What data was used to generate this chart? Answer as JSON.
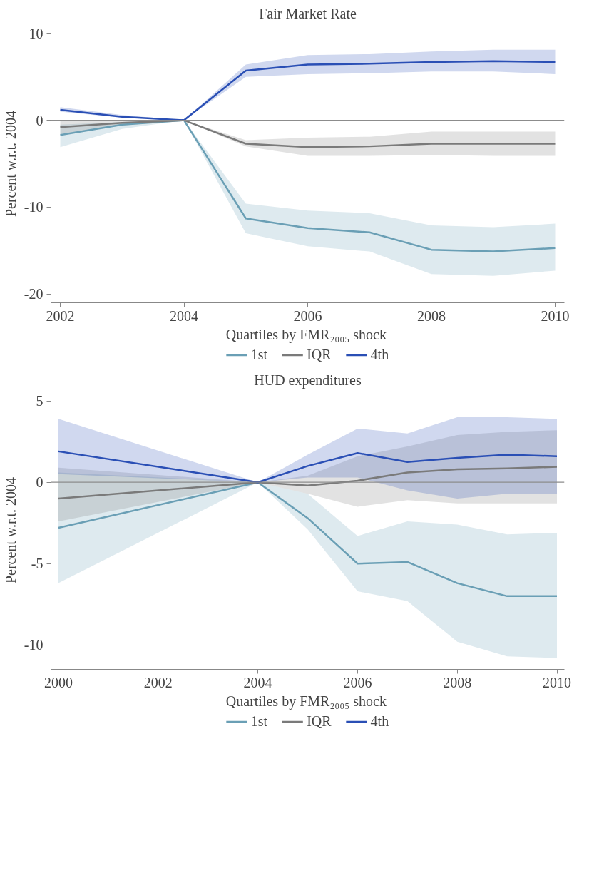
{
  "chart_data": [
    {
      "type": "line",
      "title": "Fair Market Rate",
      "ylabel": "Percent w.r.t. 2004",
      "legend_title": "Quartiles by FMR₂₀₀₅ shock",
      "x": [
        2002,
        2003,
        2004,
        2005,
        2006,
        2007,
        2008,
        2009,
        2010
      ],
      "series": [
        {
          "name": "1st",
          "color": "#6a9fb5",
          "values": [
            -1.7,
            -0.5,
            0,
            -11.3,
            -12.4,
            -12.9,
            -14.9,
            -15.1,
            -14.7
          ],
          "lower": [
            -3.1,
            -1.0,
            0,
            -13.0,
            -14.5,
            -15.1,
            -17.7,
            -17.9,
            -17.3
          ],
          "upper": [
            -0.5,
            -0.2,
            0,
            -9.6,
            -10.4,
            -10.7,
            -12.1,
            -12.3,
            -11.9
          ]
        },
        {
          "name": "IQR",
          "color": "#7a7a7a",
          "values": [
            -0.8,
            -0.3,
            0,
            -2.7,
            -3.1,
            -3.0,
            -2.7,
            -2.7,
            -2.7
          ],
          "lower": [
            -1.6,
            -0.6,
            0,
            -3.0,
            -4.1,
            -4.1,
            -4.0,
            -4.1,
            -4.1
          ],
          "upper": [
            0,
            0,
            0,
            -2.3,
            -2.0,
            -1.9,
            -1.3,
            -1.3,
            -1.3
          ]
        },
        {
          "name": "4th",
          "color": "#2a4fb5",
          "values": [
            1.2,
            0.4,
            0,
            5.7,
            6.4,
            6.5,
            6.7,
            6.8,
            6.7
          ],
          "lower": [
            1.0,
            0.3,
            0,
            5.0,
            5.3,
            5.4,
            5.6,
            5.6,
            5.3
          ],
          "upper": [
            1.5,
            0.6,
            0,
            6.4,
            7.5,
            7.6,
            7.9,
            8.1,
            8.1
          ]
        }
      ],
      "xlim": [
        2001.85,
        2010.15
      ],
      "xticks": [
        2002,
        2004,
        2006,
        2008,
        2010
      ],
      "ylim": [
        -21,
        11
      ],
      "yticks": [
        -20,
        -10,
        0,
        10
      ],
      "ref_lines": [
        {
          "axis": "y",
          "value": 0,
          "color": "#8c8c8c"
        }
      ],
      "grid": false,
      "legend": "bottom",
      "marker": "none",
      "line_style": "solid"
    },
    {
      "type": "line",
      "title": "HUD expenditures",
      "ylabel": "Percent w.r.t. 2004",
      "legend_title": "Quartiles by FMR₂₀₀₅ shock",
      "x": [
        2000,
        2004,
        2005,
        2006,
        2007,
        2008,
        2009,
        2010
      ],
      "series": [
        {
          "name": "1st",
          "color": "#6a9fb5",
          "values": [
            -2.8,
            0,
            -2.2,
            -5.0,
            -4.9,
            -6.2,
            -7.0,
            -7.0
          ],
          "lower": [
            -6.2,
            0,
            -2.9,
            -6.7,
            -7.3,
            -9.8,
            -10.7,
            -10.8
          ],
          "upper": [
            0.6,
            0,
            -0.7,
            -3.3,
            -2.4,
            -2.6,
            -3.2,
            -3.1
          ]
        },
        {
          "name": "IQR",
          "color": "#7a7a7a",
          "values": [
            -1.0,
            0,
            -0.2,
            0.1,
            0.6,
            0.8,
            0.85,
            0.95
          ],
          "lower": [
            -2.4,
            0,
            -0.7,
            -1.5,
            -1.1,
            -1.3,
            -1.3,
            -1.3
          ],
          "upper": [
            0.9,
            0,
            0.4,
            1.6,
            2.2,
            2.9,
            3.1,
            3.2
          ]
        },
        {
          "name": "4th",
          "color": "#2a4fb5",
          "values": [
            1.9,
            0,
            1.0,
            1.8,
            1.25,
            1.5,
            1.7,
            1.6
          ],
          "lower": [
            0.5,
            0,
            0.3,
            0.3,
            -0.5,
            -1.0,
            -0.7,
            -0.7
          ],
          "upper": [
            3.9,
            0,
            1.7,
            3.3,
            3.0,
            4.0,
            4.0,
            3.9
          ]
        }
      ],
      "xlim": [
        1999.85,
        2010.15
      ],
      "xticks": [
        2000,
        2002,
        2004,
        2006,
        2008,
        2010
      ],
      "ylim": [
        -11.5,
        5.6
      ],
      "yticks": [
        -10,
        -5,
        0,
        5
      ],
      "ref_lines": [
        {
          "axis": "y",
          "value": 0,
          "color": "#8c8c8c"
        }
      ],
      "grid": false,
      "legend": "bottom",
      "marker": "none",
      "line_style": "solid"
    }
  ]
}
